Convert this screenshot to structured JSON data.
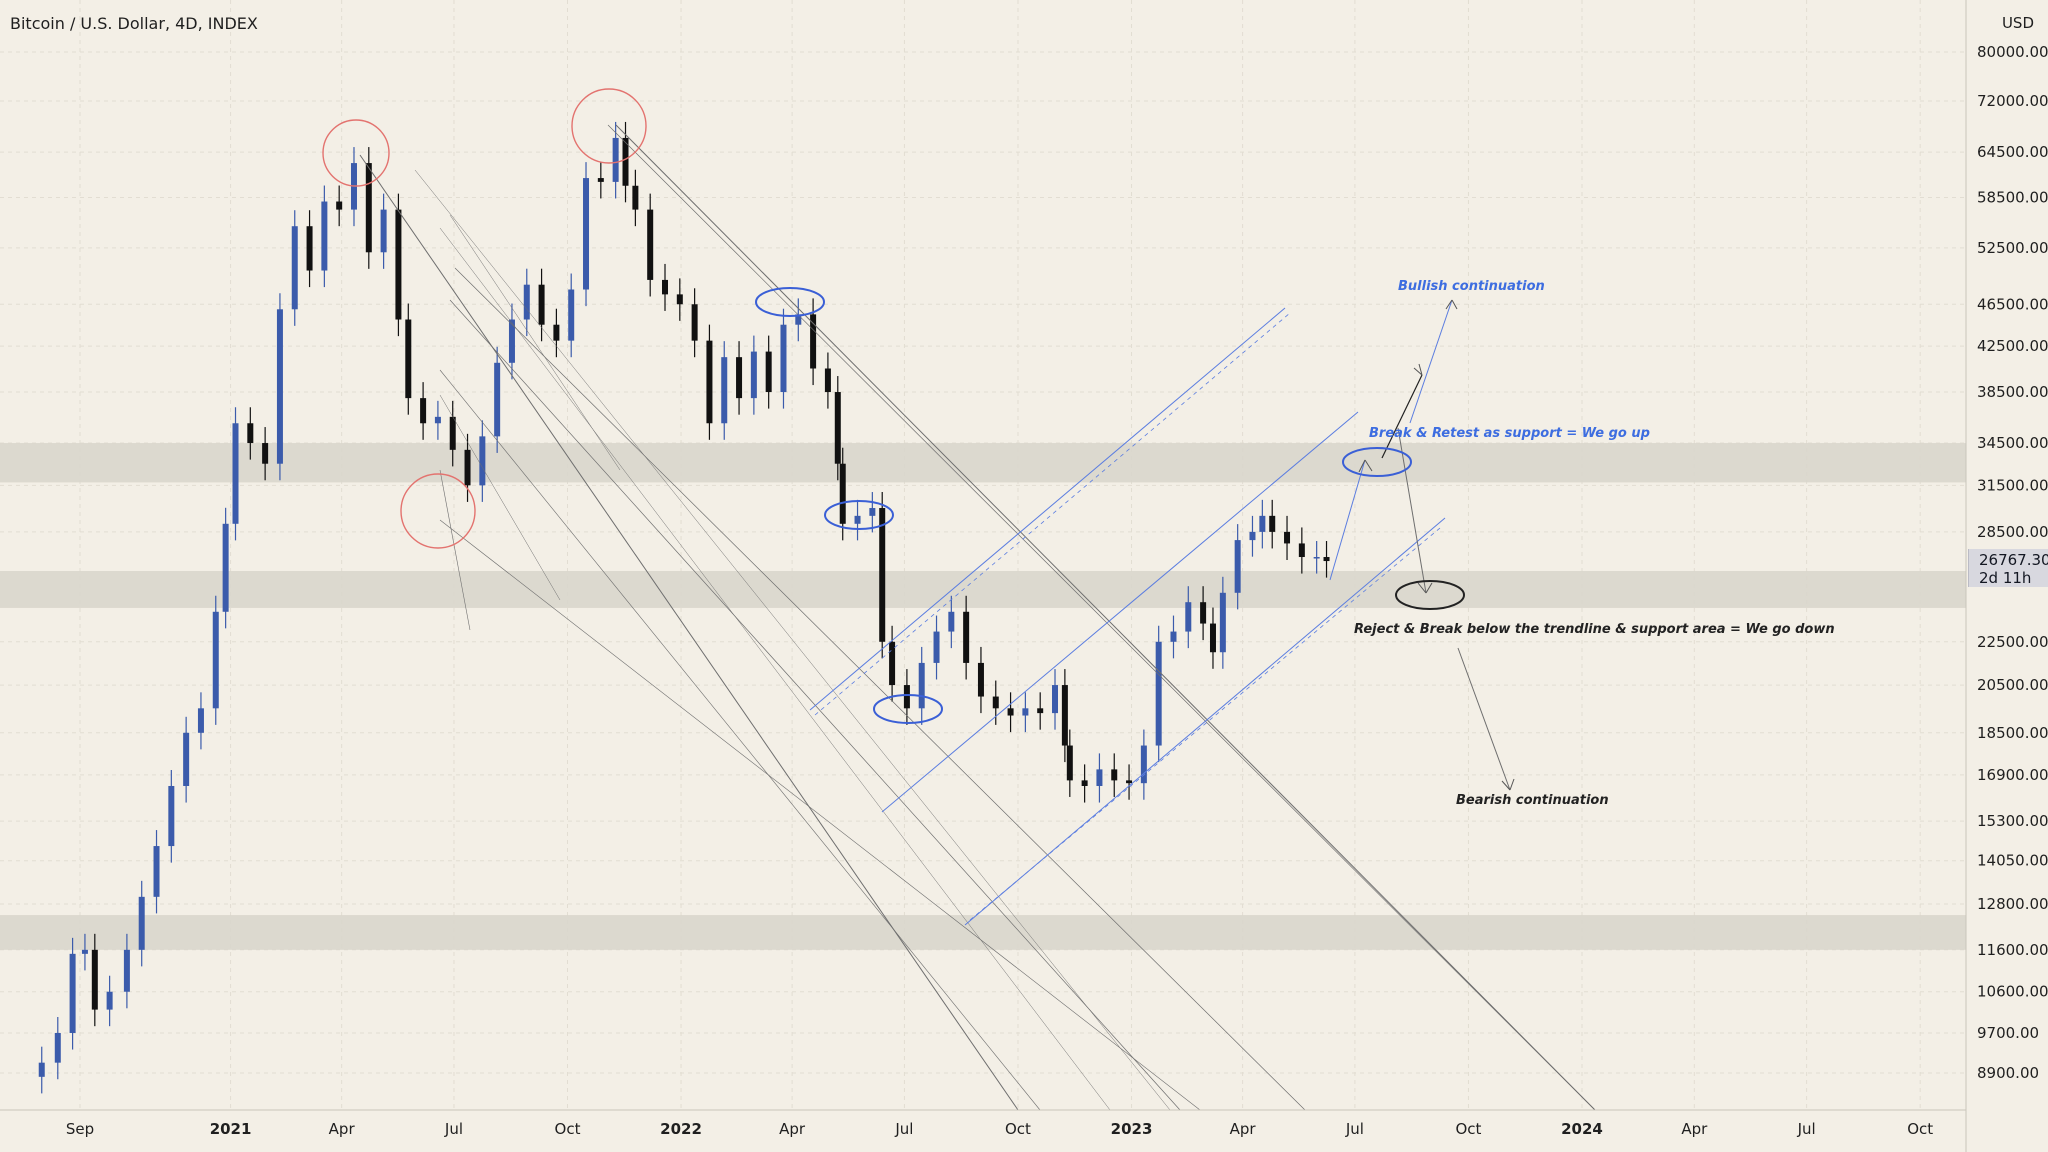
{
  "header": {
    "title": "Bitcoin / U.S. Dollar, 4D, INDEX",
    "currency": "USD"
  },
  "price_label": {
    "last_price": "26767.30",
    "countdown": "2d 11h"
  },
  "annotations": {
    "bullish_continuation": "Bullish continuation",
    "break_retest": "Break & Retest as support = We go up",
    "reject_break": "Reject & Break below the trendline & support area = We go down",
    "bearish_continuation": "Bearish continuation"
  },
  "colors": {
    "background": "#f3efe6",
    "candle_up": "#3b5bab",
    "candle_down": "#111111",
    "zone": "#d9d6cc",
    "blue_line": "#5b7de0",
    "red_circle": "#e3736f",
    "annotation_blue": "#3d6de0",
    "annotation_dark": "#222222",
    "gray_line": "#6e6e6e"
  },
  "chart_data": {
    "type": "candlestick",
    "title": "Bitcoin / U.S. Dollar, 4D, INDEX",
    "scale": "log",
    "y_axis_ticks": [
      80000,
      72000,
      64500,
      58500,
      52500,
      46500,
      42500,
      38500,
      34500,
      31500,
      28500,
      22500,
      20500,
      18500,
      16900,
      15300,
      14050,
      12800,
      11600,
      10600,
      9700,
      8900
    ],
    "y_axis_tick_labels": [
      "80000.00",
      "72000.00",
      "64500.00",
      "58500.00",
      "52500.00",
      "46500.00",
      "42500.00",
      "38500.00",
      "34500.00",
      "31500.00",
      "28500.00",
      "22500.00",
      "20500.00",
      "18500.00",
      "16900.00",
      "15300.00",
      "14050.00",
      "12800.00",
      "11600.00",
      "10600.00",
      "9700.00",
      "8900.00"
    ],
    "x_axis_ticks": [
      {
        "date": "2020-09-01",
        "label": "Sep",
        "bold": false
      },
      {
        "date": "2021-01-01",
        "label": "2021",
        "bold": true
      },
      {
        "date": "2021-04-01",
        "label": "Apr",
        "bold": false
      },
      {
        "date": "2021-07-01",
        "label": "Jul",
        "bold": false
      },
      {
        "date": "2021-10-01",
        "label": "Oct",
        "bold": false
      },
      {
        "date": "2022-01-01",
        "label": "2022",
        "bold": true
      },
      {
        "date": "2022-04-01",
        "label": "Apr",
        "bold": false
      },
      {
        "date": "2022-07-01",
        "label": "Jul",
        "bold": false
      },
      {
        "date": "2022-10-01",
        "label": "Oct",
        "bold": false
      },
      {
        "date": "2023-01-01",
        "label": "2023",
        "bold": true
      },
      {
        "date": "2023-04-01",
        "label": "Apr",
        "bold": false
      },
      {
        "date": "2023-07-01",
        "label": "Jul",
        "bold": false
      },
      {
        "date": "2023-10-01",
        "label": "Oct",
        "bold": false
      },
      {
        "date": "2024-01-01",
        "label": "2024",
        "bold": true
      },
      {
        "date": "2024-04-01",
        "label": "Apr",
        "bold": false
      },
      {
        "date": "2024-07-01",
        "label": "Jul",
        "bold": false
      },
      {
        "date": "2024-10-01",
        "label": "Oct",
        "bold": false
      }
    ],
    "candle_interval": "4D",
    "last_price": 26767.3,
    "closes": [
      [
        "2020-08-01",
        9100
      ],
      [
        "2020-08-14",
        9700
      ],
      [
        "2020-08-26",
        11500
      ],
      [
        "2020-09-05",
        11600
      ],
      [
        "2020-09-13",
        10200
      ],
      [
        "2020-09-25",
        10600
      ],
      [
        "2020-10-09",
        11600
      ],
      [
        "2020-10-21",
        13000
      ],
      [
        "2020-11-02",
        14500
      ],
      [
        "2020-11-14",
        16500
      ],
      [
        "2020-11-26",
        18500
      ],
      [
        "2020-12-08",
        19500
      ],
      [
        "2020-12-20",
        24000
      ],
      [
        "2020-12-28",
        29000
      ],
      [
        "2021-01-05",
        36000
      ],
      [
        "2021-01-17",
        34500
      ],
      [
        "2021-01-29",
        33000
      ],
      [
        "2021-02-10",
        46000
      ],
      [
        "2021-02-22",
        55000
      ],
      [
        "2021-03-06",
        50000
      ],
      [
        "2021-03-18",
        58000
      ],
      [
        "2021-03-30",
        57000
      ],
      [
        "2021-04-11",
        63000
      ],
      [
        "2021-04-23",
        52000
      ],
      [
        "2021-05-05",
        57000
      ],
      [
        "2021-05-17",
        45000
      ],
      [
        "2021-05-25",
        38000
      ],
      [
        "2021-06-06",
        36000
      ],
      [
        "2021-06-18",
        36500
      ],
      [
        "2021-06-30",
        34000
      ],
      [
        "2021-07-12",
        31500
      ],
      [
        "2021-07-24",
        35000
      ],
      [
        "2021-08-05",
        41000
      ],
      [
        "2021-08-17",
        45000
      ],
      [
        "2021-08-29",
        48500
      ],
      [
        "2021-09-10",
        44500
      ],
      [
        "2021-09-22",
        43000
      ],
      [
        "2021-10-04",
        48000
      ],
      [
        "2021-10-16",
        61000
      ],
      [
        "2021-10-28",
        60500
      ],
      [
        "2021-11-09",
        66500
      ],
      [
        "2021-11-17",
        60000
      ],
      [
        "2021-11-25",
        57000
      ],
      [
        "2021-12-07",
        49000
      ],
      [
        "2021-12-19",
        47500
      ],
      [
        "2021-12-31",
        46500
      ],
      [
        "2022-01-12",
        43000
      ],
      [
        "2022-01-24",
        36000
      ],
      [
        "2022-02-05",
        41500
      ],
      [
        "2022-02-17",
        38000
      ],
      [
        "2022-03-01",
        42000
      ],
      [
        "2022-03-13",
        38500
      ],
      [
        "2022-03-25",
        44500
      ],
      [
        "2022-04-06",
        45500
      ],
      [
        "2022-04-18",
        40500
      ],
      [
        "2022-04-30",
        38500
      ],
      [
        "2022-05-08",
        33000
      ],
      [
        "2022-05-12",
        29000
      ],
      [
        "2022-05-24",
        29500
      ],
      [
        "2022-06-05",
        30000
      ],
      [
        "2022-06-13",
        22500
      ],
      [
        "2022-06-21",
        20500
      ],
      [
        "2022-07-03",
        19500
      ],
      [
        "2022-07-15",
        21500
      ],
      [
        "2022-07-27",
        23000
      ],
      [
        "2022-08-08",
        24000
      ],
      [
        "2022-08-20",
        21500
      ],
      [
        "2022-09-01",
        20000
      ],
      [
        "2022-09-13",
        19500
      ],
      [
        "2022-09-25",
        19200
      ],
      [
        "2022-10-07",
        19500
      ],
      [
        "2022-10-19",
        19300
      ],
      [
        "2022-10-31",
        20500
      ],
      [
        "2022-11-08",
        18000
      ],
      [
        "2022-11-12",
        16700
      ],
      [
        "2022-11-24",
        16500
      ],
      [
        "2022-12-06",
        17100
      ],
      [
        "2022-12-18",
        16700
      ],
      [
        "2022-12-30",
        16600
      ],
      [
        "2023-01-11",
        18000
      ],
      [
        "2023-01-23",
        22500
      ],
      [
        "2023-02-04",
        23000
      ],
      [
        "2023-02-16",
        24500
      ],
      [
        "2023-02-28",
        23400
      ],
      [
        "2023-03-08",
        22000
      ],
      [
        "2023-03-16",
        25000
      ],
      [
        "2023-03-28",
        28000
      ],
      [
        "2023-04-09",
        28500
      ],
      [
        "2023-04-17",
        29500
      ],
      [
        "2023-04-25",
        28500
      ],
      [
        "2023-05-07",
        27800
      ],
      [
        "2023-05-19",
        27000
      ],
      [
        "2023-05-31",
        27000
      ],
      [
        "2023-06-08",
        26767
      ]
    ],
    "horizontal_zones": [
      {
        "name": "upper resistance",
        "from": 31700,
        "to": 34500
      },
      {
        "name": "support area",
        "from": 24200,
        "to": 26200
      },
      {
        "name": "lower support",
        "from": 11600,
        "to": 12500
      }
    ]
  }
}
